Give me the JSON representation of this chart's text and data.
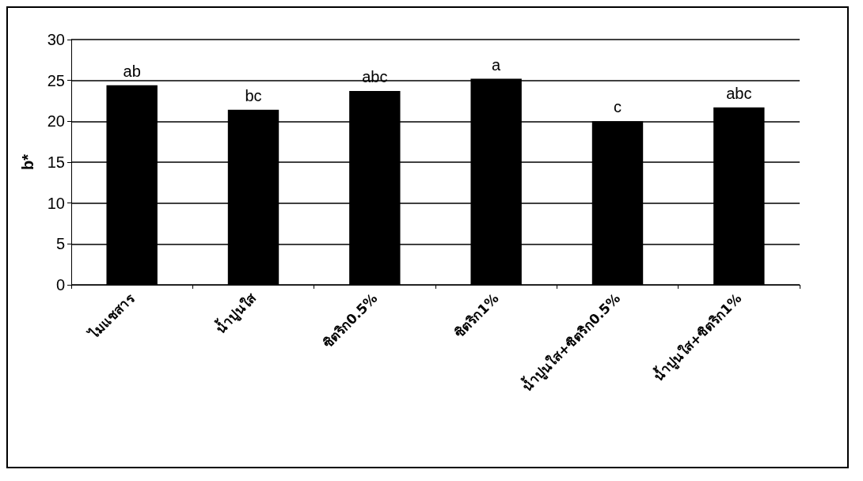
{
  "chart_data": {
    "type": "bar",
    "ylabel": "b*",
    "categories": [
      "ไมแชสาร",
      "น้ำปูนใส",
      "ซิตริก0.5%",
      "ซิตริก1%",
      "น้ำปูนใส+ซิตริก0.5%",
      "น้ำปูนใส+ซิตริก1%"
    ],
    "values": [
      24.4,
      21.4,
      23.7,
      25.2,
      20.0,
      21.7
    ],
    "color": "#000000",
    "ylim": [
      0,
      30
    ],
    "yticks": [
      0,
      5,
      10,
      15,
      20,
      25,
      30
    ],
    "grid": "y",
    "annotations": [
      {
        "text": "ab",
        "x": "ไมแชสาร",
        "y": 24.4
      },
      {
        "text": "bc",
        "x": "น้ำปูนใส",
        "y": 21.4
      },
      {
        "text": "abc",
        "x": "ซิตริก0.5%",
        "y": 23.7
      },
      {
        "text": "a",
        "x": "ซิตริก1%",
        "y": 25.2
      },
      {
        "text": "c",
        "x": "น้ำปูนใส+ซิตริก0.5%",
        "y": 20.0
      },
      {
        "text": "abc",
        "x": "น้ำปูนใส+ซิตริก1%",
        "y": 21.7
      }
    ]
  }
}
